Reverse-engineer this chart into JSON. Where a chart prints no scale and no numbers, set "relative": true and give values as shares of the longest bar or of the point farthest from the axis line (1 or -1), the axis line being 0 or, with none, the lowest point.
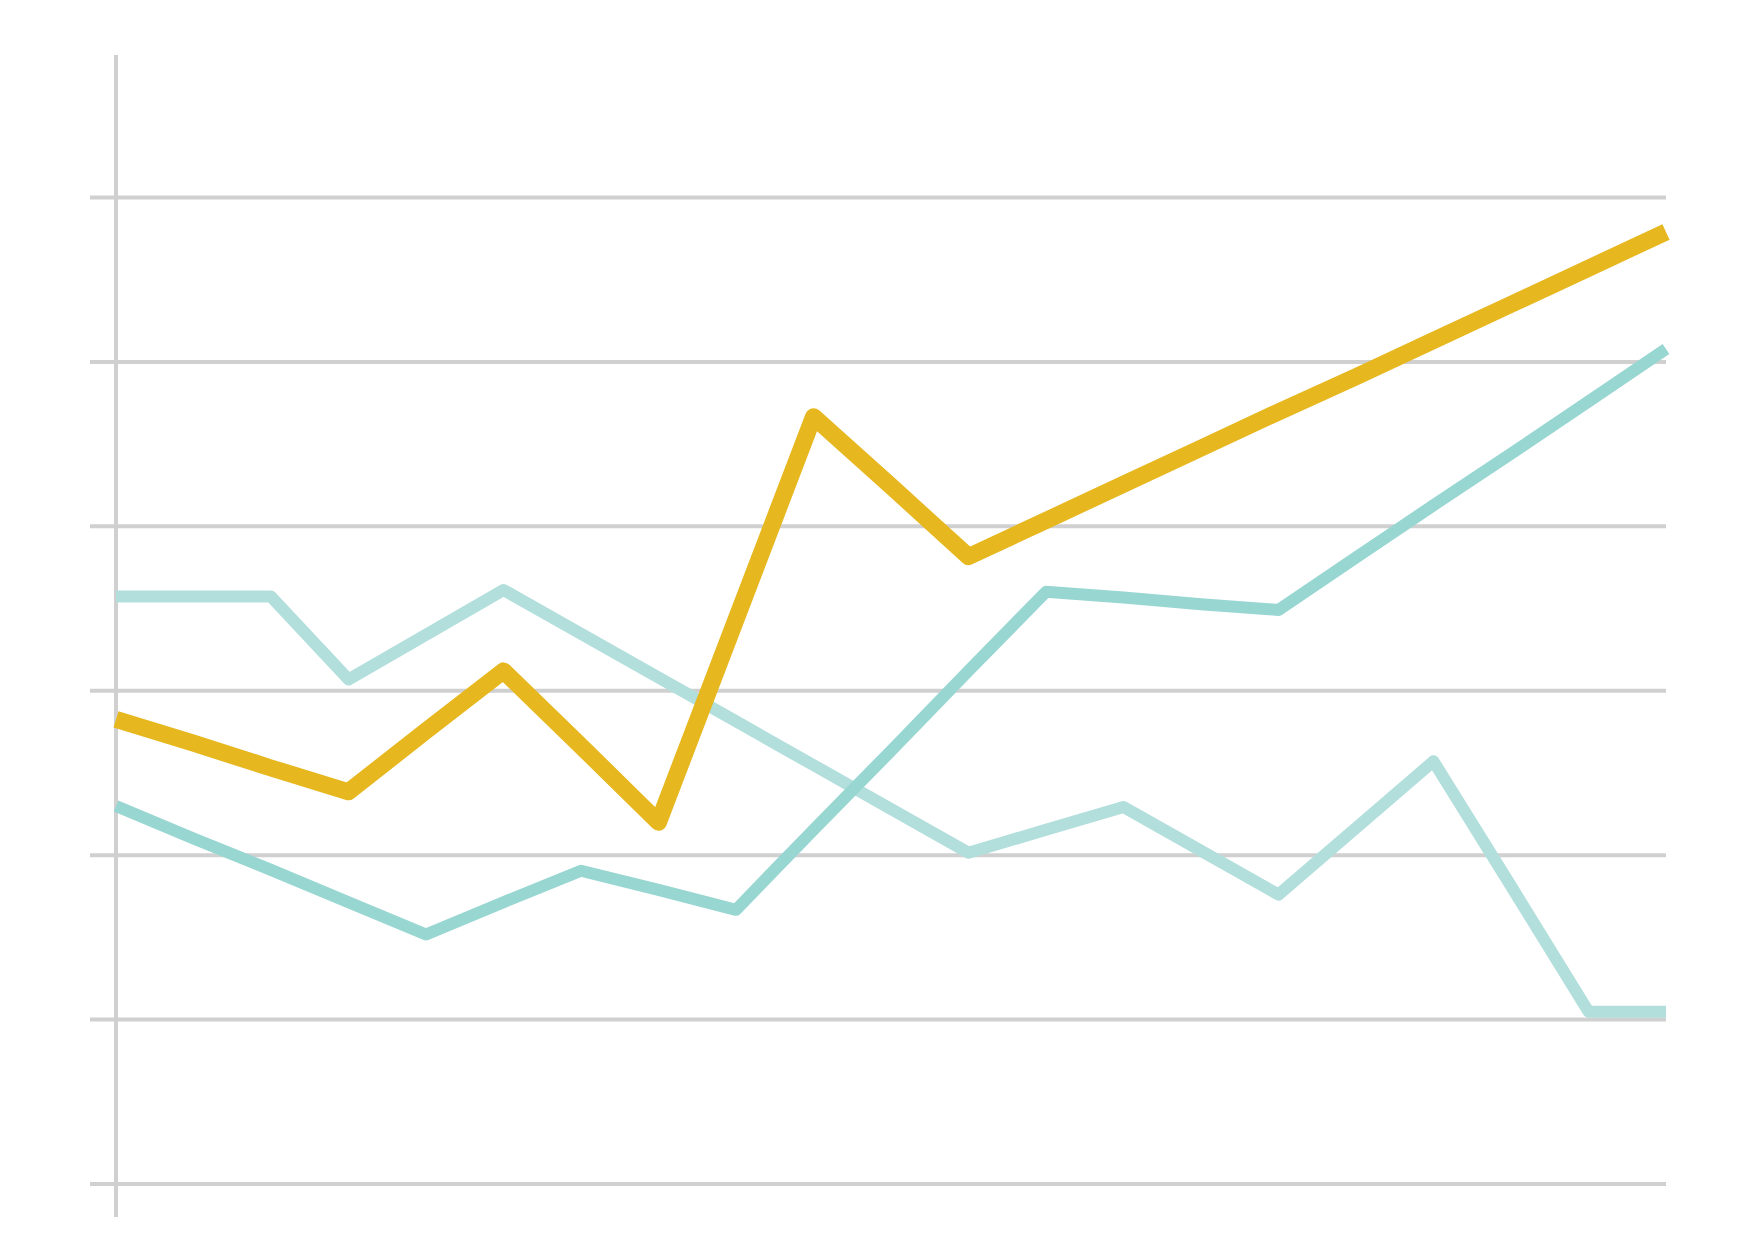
{
  "chart_data": {
    "type": "line",
    "relative": true,
    "grid": true,
    "tick_labels": false,
    "line_style": "solid",
    "marker": "none",
    "categories": [
      null,
      null,
      null,
      null,
      null,
      null,
      null,
      null,
      null,
      null,
      null,
      null,
      null,
      null,
      null,
      null,
      null,
      null,
      null,
      null,
      null
    ],
    "series": [
      {
        "color": "#b2dfdc",
        "values": [
          0.617,
          0.617,
          0.617,
          0.53,
          0.577,
          0.624,
          0.578,
          0.532,
          0.486,
          0.44,
          0.394,
          0.348,
          0.372,
          0.396,
          0.35,
          0.304,
          0.374,
          0.444,
          0.313,
          0.181,
          0.181
        ]
      },
      {
        "color": "#98d6d2",
        "values": [
          0.397,
          0.363,
          0.33,
          0.296,
          0.262,
          0.296,
          0.329,
          0.309,
          0.288,
          0.372,
          0.455,
          0.539,
          0.622,
          0.616,
          0.609,
          0.603,
          0.658,
          0.713,
          0.767,
          0.822,
          0.877
        ]
      },
      {
        "color": "#e6b71e",
        "values": [
          0.488,
          0.463,
          0.437,
          0.412,
          0.476,
          0.539,
          0.46,
          0.38,
          0.593,
          0.806,
          0.733,
          0.659,
          0.697,
          0.735,
          0.773,
          0.811,
          0.848,
          0.886,
          0.924,
          0.962,
          1
        ]
      }
    ]
  }
}
